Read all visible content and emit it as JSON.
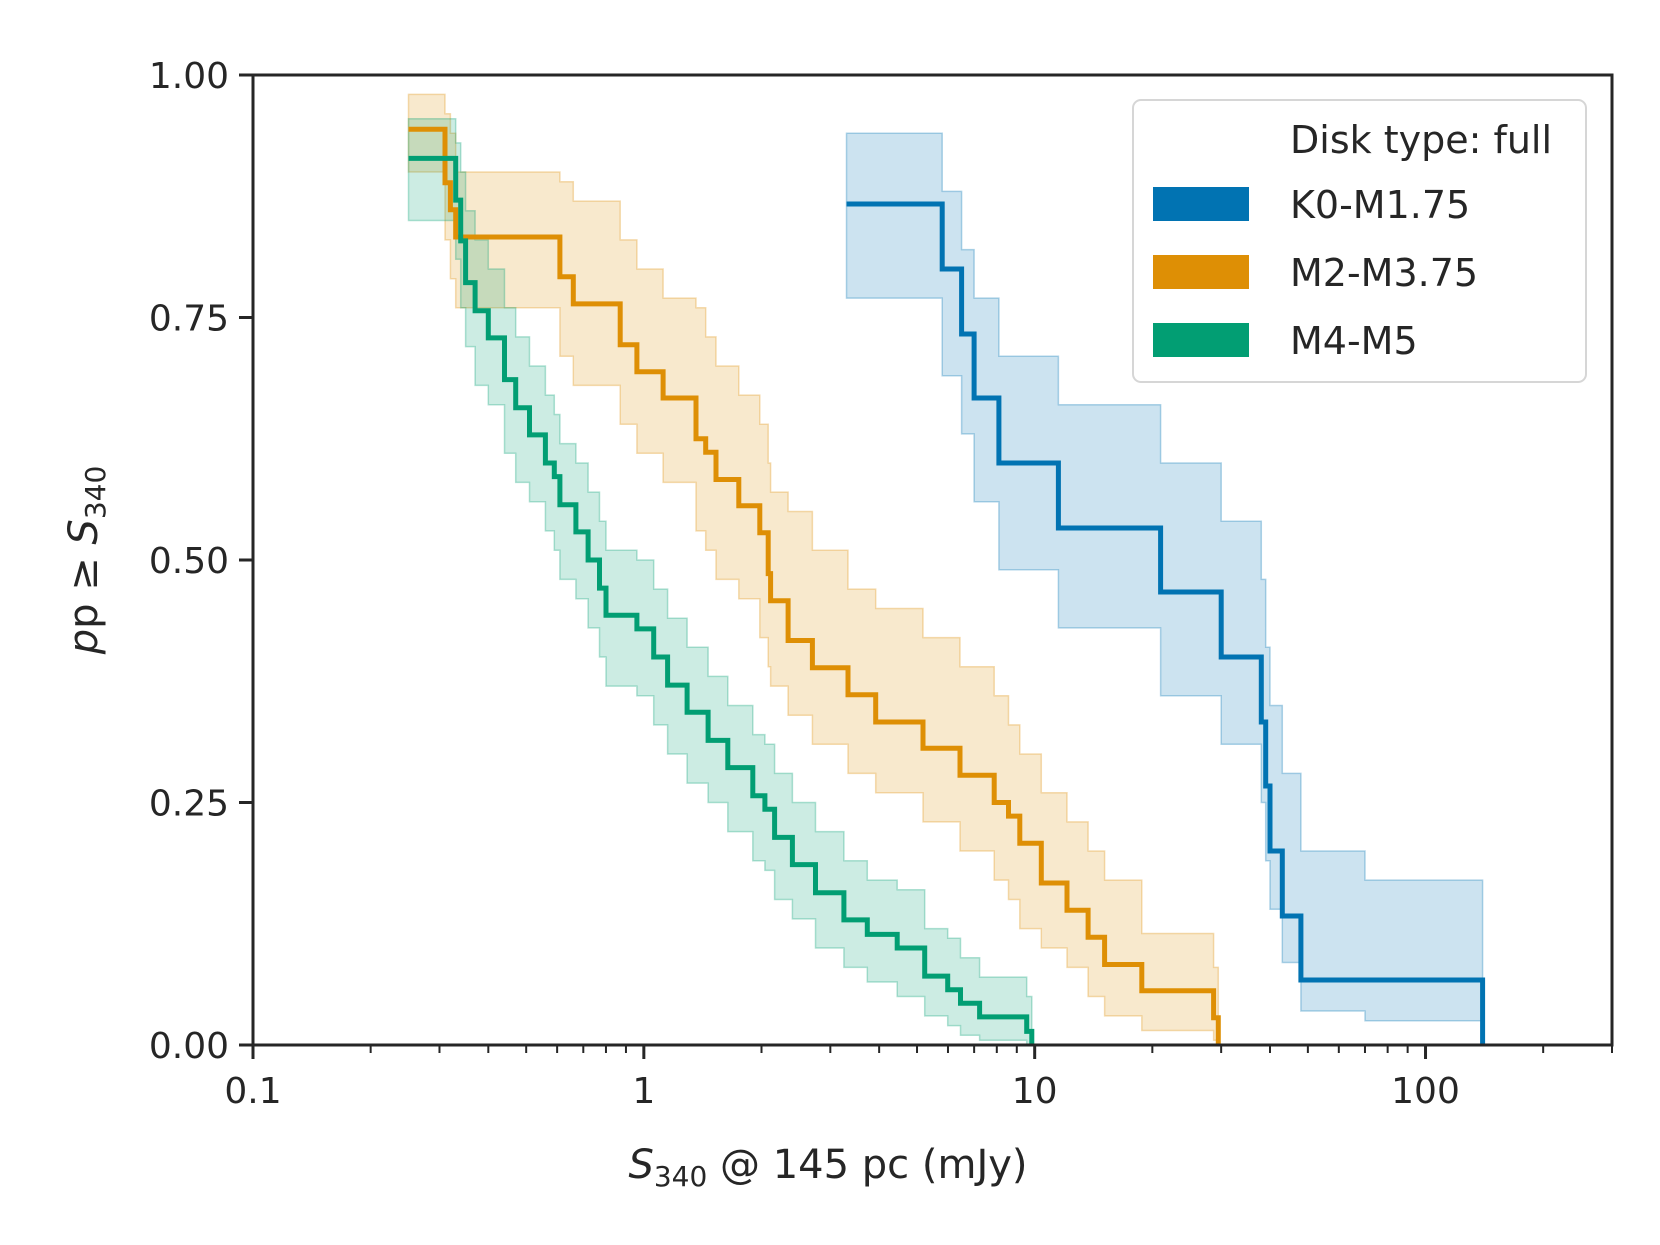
{
  "chart_data": {
    "type": "line",
    "x_scale": "log",
    "xlim": [
      0.1,
      300
    ],
    "ylim": [
      0,
      1
    ],
    "xlabel": {
      "symbol": "S",
      "subscript": "340",
      "rest": " @ 145 pc (mJy)"
    },
    "ylabel": {
      "prefix": "p ≥ ",
      "symbol": "S",
      "subscript": "340"
    },
    "x_ticks": [
      {
        "value": 0.1,
        "label": "0.1"
      },
      {
        "value": 1,
        "label": "1"
      },
      {
        "value": 10,
        "label": "10"
      },
      {
        "value": 100,
        "label": "100"
      }
    ],
    "y_ticks": [
      {
        "value": 0,
        "label": "0.00"
      },
      {
        "value": 0.25,
        "label": "0.25"
      },
      {
        "value": 0.5,
        "label": "0.50"
      },
      {
        "value": 0.75,
        "label": "0.75"
      },
      {
        "value": 1,
        "label": "1.00"
      }
    ],
    "legend": {
      "title": "Disk type: full",
      "position": "top-right"
    },
    "series": [
      {
        "name": "K0-M1.75",
        "color": "#0173b2",
        "x": [
          3.3,
          5.8,
          6.5,
          7.0,
          8.1,
          11.5,
          21,
          30,
          38,
          39,
          40,
          43,
          48,
          70,
          140
        ],
        "y": [
          0.867,
          0.8,
          0.733,
          0.667,
          0.6,
          0.533,
          0.467,
          0.4,
          0.333,
          0.267,
          0.2,
          0.133,
          0.067,
          0.067,
          0.0
        ],
        "upper": [
          0.94,
          0.88,
          0.82,
          0.77,
          0.71,
          0.66,
          0.6,
          0.54,
          0.48,
          0.41,
          0.35,
          0.28,
          0.2,
          0.17,
          0.17
        ],
        "lower": [
          0.77,
          0.69,
          0.63,
          0.56,
          0.49,
          0.43,
          0.36,
          0.31,
          0.25,
          0.19,
          0.14,
          0.085,
          0.035,
          0.025,
          0.025
        ]
      },
      {
        "name": "M2-M3.75",
        "color": "#de8f05",
        "x": [
          0.25,
          0.31,
          0.32,
          0.33,
          0.61,
          0.66,
          0.87,
          0.96,
          1.12,
          1.36,
          1.44,
          1.53,
          1.75,
          1.98,
          2.08,
          2.11,
          2.34,
          2.7,
          3.33,
          3.92,
          5.18,
          6.44,
          7.88,
          8.57,
          9.16,
          10.4,
          12.1,
          13.7,
          15.1,
          18.8,
          28.7,
          29.5
        ],
        "y": [
          0.944,
          0.889,
          0.861,
          0.833,
          0.792,
          0.764,
          0.722,
          0.694,
          0.667,
          0.625,
          0.611,
          0.583,
          0.556,
          0.528,
          0.486,
          0.458,
          0.417,
          0.389,
          0.361,
          0.333,
          0.306,
          0.278,
          0.25,
          0.236,
          0.208,
          0.167,
          0.139,
          0.111,
          0.083,
          0.056,
          0.028,
          0.0
        ],
        "upper": [
          0.98,
          0.96,
          0.94,
          0.9,
          0.89,
          0.87,
          0.83,
          0.8,
          0.77,
          0.76,
          0.73,
          0.7,
          0.67,
          0.64,
          0.6,
          0.57,
          0.55,
          0.51,
          0.47,
          0.45,
          0.42,
          0.39,
          0.36,
          0.33,
          0.3,
          0.26,
          0.23,
          0.2,
          0.17,
          0.115,
          0.08,
          0.08
        ],
        "lower": [
          0.9,
          0.83,
          0.79,
          0.76,
          0.71,
          0.68,
          0.64,
          0.61,
          0.58,
          0.53,
          0.51,
          0.48,
          0.46,
          0.42,
          0.39,
          0.37,
          0.34,
          0.31,
          0.28,
          0.26,
          0.23,
          0.2,
          0.17,
          0.15,
          0.12,
          0.1,
          0.08,
          0.05,
          0.03,
          0.015,
          0.005,
          0.005
        ]
      },
      {
        "name": "M4-M5",
        "color": "#029e73",
        "x": [
          0.25,
          0.33,
          0.34,
          0.35,
          0.37,
          0.4,
          0.44,
          0.47,
          0.51,
          0.56,
          0.59,
          0.61,
          0.67,
          0.72,
          0.77,
          0.8,
          0.96,
          1.06,
          1.15,
          1.29,
          1.46,
          1.64,
          1.9,
          2.04,
          2.16,
          2.4,
          2.75,
          3.25,
          3.73,
          4.45,
          5.23,
          5.99,
          6.46,
          7.23,
          9.54,
          9.83
        ],
        "y": [
          0.914,
          0.871,
          0.829,
          0.786,
          0.757,
          0.729,
          0.686,
          0.657,
          0.629,
          0.6,
          0.586,
          0.557,
          0.529,
          0.5,
          0.471,
          0.443,
          0.429,
          0.4,
          0.371,
          0.343,
          0.314,
          0.286,
          0.257,
          0.243,
          0.214,
          0.186,
          0.157,
          0.129,
          0.114,
          0.1,
          0.071,
          0.057,
          0.043,
          0.029,
          0.014,
          0.0
        ],
        "upper": [
          0.955,
          0.93,
          0.9,
          0.86,
          0.83,
          0.8,
          0.76,
          0.73,
          0.7,
          0.67,
          0.65,
          0.62,
          0.6,
          0.57,
          0.54,
          0.51,
          0.5,
          0.47,
          0.44,
          0.41,
          0.38,
          0.35,
          0.32,
          0.31,
          0.28,
          0.25,
          0.22,
          0.19,
          0.17,
          0.16,
          0.12,
          0.11,
          0.09,
          0.07,
          0.05,
          0.05
        ],
        "lower": [
          0.85,
          0.81,
          0.76,
          0.72,
          0.68,
          0.66,
          0.61,
          0.58,
          0.56,
          0.53,
          0.51,
          0.48,
          0.46,
          0.43,
          0.4,
          0.37,
          0.36,
          0.33,
          0.3,
          0.27,
          0.25,
          0.22,
          0.19,
          0.18,
          0.15,
          0.13,
          0.1,
          0.08,
          0.065,
          0.05,
          0.03,
          0.02,
          0.01,
          0.005,
          0.0,
          0.0
        ]
      }
    ]
  }
}
